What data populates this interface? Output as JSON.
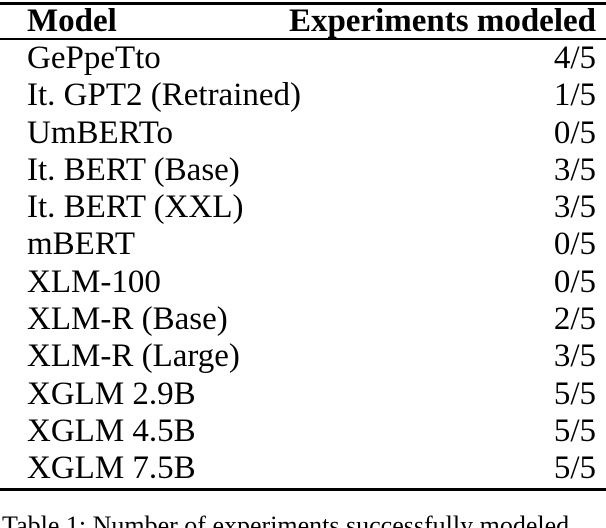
{
  "table": {
    "columns": {
      "model": "Model",
      "experiments": "Experiments modeled"
    },
    "rows": [
      {
        "model": "GePpeTto",
        "experiments_modeled": "4/5"
      },
      {
        "model": "It. GPT2 (Retrained)",
        "experiments_modeled": "1/5"
      },
      {
        "model": "UmBERTo",
        "experiments_modeled": "0/5"
      },
      {
        "model": "It. BERT (Base)",
        "experiments_modeled": "3/5"
      },
      {
        "model": "It. BERT (XXL)",
        "experiments_modeled": "3/5"
      },
      {
        "model": "mBERT",
        "experiments_modeled": "0/5"
      },
      {
        "model": "XLM-100",
        "experiments_modeled": "0/5"
      },
      {
        "model": "XLM-R (Base)",
        "experiments_modeled": "2/5"
      },
      {
        "model": "XLM-R (Large)",
        "experiments_modeled": "3/5"
      },
      {
        "model": "XGLM 2.9B",
        "experiments_modeled": "5/5"
      },
      {
        "model": "XGLM 4.5B",
        "experiments_modeled": "5/5"
      },
      {
        "model": "XGLM 7.5B",
        "experiments_modeled": "5/5"
      }
    ]
  },
  "caption": {
    "text": "Table 1: Number of experiments successfully modeled"
  },
  "colors": {
    "text": "#000000",
    "background": "#ffffff",
    "rule": "#000000"
  }
}
